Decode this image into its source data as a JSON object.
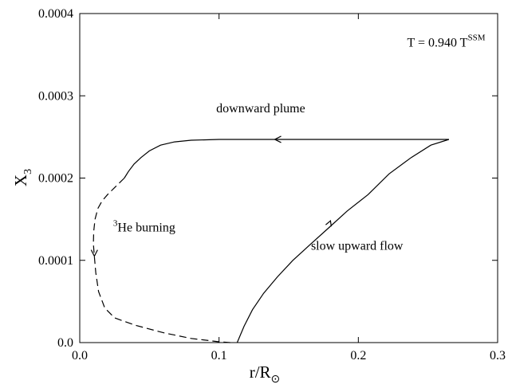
{
  "chart_data": {
    "type": "line",
    "xlabel": {
      "main": "r/R",
      "sub": "⊙"
    },
    "ylabel": {
      "main": "X",
      "sub": "3"
    },
    "xlim": [
      0.0,
      0.3
    ],
    "ylim": [
      0.0,
      0.0004
    ],
    "x_ticks": [
      0.0,
      0.1,
      0.2,
      0.3
    ],
    "x_tick_labels": [
      "0.0",
      "0.1",
      "0.2",
      "0.3"
    ],
    "y_ticks": [
      0.0,
      0.0001,
      0.0002,
      0.0003,
      0.0004
    ],
    "y_tick_labels": [
      "0.0",
      "0.0001",
      "0.0002",
      "0.0003",
      "0.0004"
    ],
    "grid": false,
    "legend": "none",
    "line_color": "#000000",
    "series": [
      {
        "style": "solid",
        "points": [
          [
            0.113,
            0.0
          ],
          [
            0.118,
            2e-05
          ],
          [
            0.124,
            4e-05
          ],
          [
            0.132,
            6e-05
          ],
          [
            0.142,
            8e-05
          ],
          [
            0.153,
            0.0001
          ],
          [
            0.166,
            0.00012
          ],
          [
            0.179,
            0.00014
          ],
          [
            0.192,
            0.00016
          ],
          [
            0.207,
            0.00018
          ],
          [
            0.222,
            0.000205
          ],
          [
            0.238,
            0.000225
          ],
          [
            0.252,
            0.00024
          ],
          [
            0.265,
            0.000247
          ]
        ],
        "arrow": {
          "at": [
            0.18,
            0.000148
          ],
          "direction": "up"
        }
      },
      {
        "style": "solid",
        "points": [
          [
            0.265,
            0.000247
          ],
          [
            0.2,
            0.000247
          ],
          [
            0.14,
            0.000247
          ],
          [
            0.1,
            0.000247
          ],
          [
            0.08,
            0.000246
          ],
          [
            0.068,
            0.000244
          ],
          [
            0.058,
            0.00024
          ],
          [
            0.05,
            0.000233
          ],
          [
            0.044,
            0.000225
          ],
          [
            0.039,
            0.000217
          ],
          [
            0.035,
            0.000208
          ],
          [
            0.032,
            0.0002
          ]
        ],
        "arrow": {
          "at": [
            0.14,
            0.000247
          ],
          "direction": "left"
        }
      },
      {
        "style": "dashed",
        "points": [
          [
            0.032,
            0.0002
          ],
          [
            0.026,
            0.00019
          ],
          [
            0.02,
            0.00018
          ],
          [
            0.016,
            0.000172
          ],
          [
            0.013,
            0.000163
          ],
          [
            0.011,
            0.00015
          ],
          [
            0.01,
            0.000135
          ],
          [
            0.0098,
            0.00012
          ],
          [
            0.0105,
            0.000105
          ],
          [
            0.0115,
            8.5e-05
          ],
          [
            0.0135,
            6.2e-05
          ],
          [
            0.018,
            4.2e-05
          ],
          [
            0.025,
            3e-05
          ],
          [
            0.04,
            2.1e-05
          ],
          [
            0.06,
            1.2e-05
          ],
          [
            0.08,
            5e-06
          ],
          [
            0.1,
            1e-06
          ],
          [
            0.108,
            0.0
          ]
        ],
        "arrow": {
          "at": [
            0.0105,
            0.000105
          ],
          "direction": "down"
        }
      }
    ],
    "annotations": [
      {
        "text": "T = 0.940 T",
        "sup": "SSM",
        "x": 0.235,
        "y": 0.00036
      },
      {
        "text": "downward plume",
        "x": 0.098,
        "y": 0.00028
      },
      {
        "pre_sup": "3",
        "text": "He burning",
        "x": 0.024,
        "y": 0.000135
      },
      {
        "text": "slow upward flow",
        "x": 0.166,
        "y": 0.000113
      }
    ]
  }
}
